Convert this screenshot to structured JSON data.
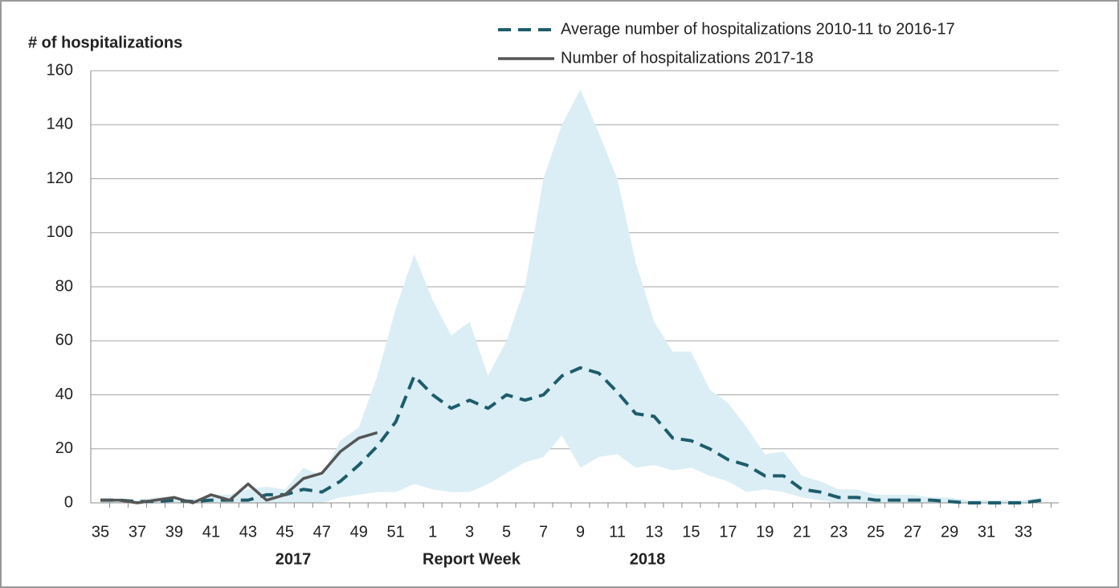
{
  "chart_data": {
    "type": "line",
    "y_label": "# of hospitalizations",
    "x_label": "Report Week",
    "year_labels": [
      "2017",
      "2018"
    ],
    "categories": [
      "35",
      null,
      "37",
      null,
      "39",
      null,
      "41",
      null,
      "43",
      null,
      "45",
      null,
      "47",
      null,
      "49",
      null,
      "51",
      null,
      "1",
      null,
      "3",
      null,
      "5",
      null,
      "7",
      null,
      "9",
      null,
      "11",
      null,
      "13",
      null,
      "15",
      null,
      "17",
      null,
      "19",
      null,
      "21",
      null,
      "23",
      null,
      "25",
      null,
      "27",
      null,
      "29",
      null,
      "31",
      null,
      "33",
      null
    ],
    "band": {
      "color": "#dbeef5",
      "upper": [
        1,
        1,
        1,
        2,
        2,
        1,
        3,
        3,
        5,
        6,
        5,
        13,
        10,
        23,
        28,
        47,
        72,
        92,
        75,
        62,
        67,
        47,
        60,
        80,
        120,
        140,
        153,
        137,
        120,
        89,
        67,
        56,
        56,
        42,
        37,
        28,
        18,
        19,
        10,
        8,
        5,
        5,
        3,
        3,
        3,
        2,
        2,
        1,
        1,
        1,
        1,
        2
      ],
      "lower": [
        0,
        0,
        0,
        0,
        0,
        0,
        0,
        0,
        0,
        0,
        0,
        0,
        0,
        2,
        3,
        4,
        4,
        7,
        5,
        4,
        4,
        7,
        11,
        15,
        17,
        25,
        13,
        17,
        18,
        13,
        14,
        12,
        13,
        10,
        8,
        4,
        5,
        4,
        2,
        1,
        0,
        0,
        0,
        0,
        0,
        0,
        0,
        0,
        0,
        0,
        0,
        0
      ]
    },
    "series": [
      {
        "name": "Average number of hospitalizations 2010-11 to 2016-17",
        "color": "#1f5c6b",
        "dashed": true,
        "values": [
          1,
          1,
          0.5,
          0.5,
          1,
          0.5,
          1,
          1,
          1,
          3,
          3,
          5,
          4,
          8,
          14,
          21,
          30,
          47,
          40,
          35,
          38,
          35,
          40,
          38,
          40,
          47,
          50,
          48,
          41,
          33,
          32,
          24,
          23,
          20,
          16,
          14,
          10,
          10,
          5,
          4,
          2,
          2,
          1,
          1,
          1,
          1,
          0.5,
          0,
          0,
          0,
          0,
          1
        ]
      },
      {
        "name": "Number of hospitalizations 2017-18",
        "color": "#555555",
        "dashed": false,
        "values": [
          1,
          1,
          0,
          1,
          2,
          0,
          3,
          1,
          7,
          1,
          3,
          9,
          11,
          19,
          24,
          26,
          null,
          null,
          null,
          null,
          null,
          null,
          null,
          null,
          null,
          null,
          null,
          null,
          null,
          null,
          null,
          null,
          null,
          null,
          null,
          null,
          null,
          null,
          null,
          null,
          null,
          null,
          null,
          null,
          null,
          null,
          null,
          null,
          null,
          null,
          null,
          null
        ]
      }
    ],
    "ylim": [
      0,
      160
    ],
    "yticks": [
      0,
      20,
      40,
      60,
      80,
      100,
      120,
      140,
      160
    ],
    "grid": true,
    "legend": "top"
  }
}
